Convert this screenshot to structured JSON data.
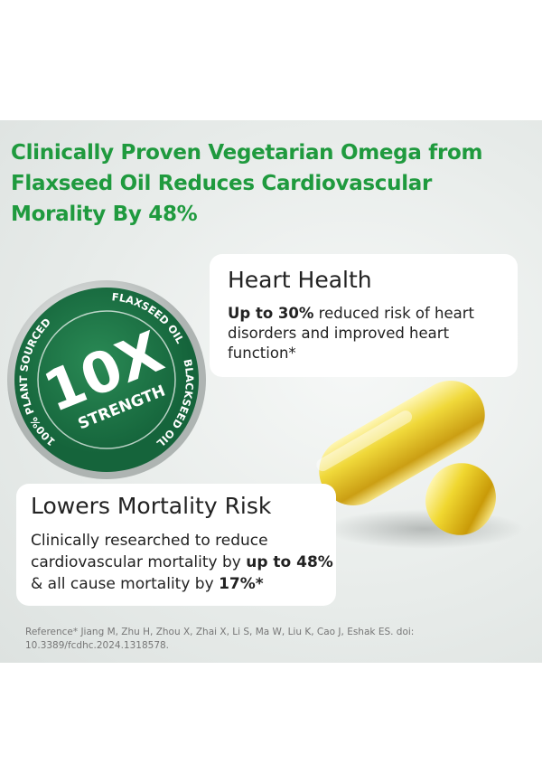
{
  "title": [
    "Clinically Proven Vegetarian Omega from",
    "Flaxseed Oil Reduces Cardiovascular",
    "Morality By 48%"
  ],
  "badge": {
    "top": "FLAXSEED OIL",
    "right": "BLACKSEED OIL",
    "left": "100% PLANT SOURCED",
    "main": "10X",
    "sub": "STRENGTH"
  },
  "cards": [
    {
      "heading": "Heart Health",
      "body": [
        {
          "text": "Up to 30%",
          "bold": true
        },
        {
          "text": " reduced risk of heart disorders and improved heart function*",
          "bold": false
        }
      ]
    },
    {
      "heading": "Lowers Mortality Risk",
      "body": [
        {
          "text": "Clinically researched to reduce cardiovascular mortality by ",
          "bold": false
        },
        {
          "text": "up to 48%",
          "bold": true
        },
        {
          "text": " & all cause mortality by ",
          "bold": false
        },
        {
          "text": "17%*",
          "bold": true
        }
      ]
    }
  ],
  "reference": [
    "Reference* Jiang M, Zhu H, Zhou X, Zhai X, Li S, Ma W, Liu K, Cao J, Eshak ES. doi:",
    "10.3389/fcdhc.2024.1318578."
  ]
}
